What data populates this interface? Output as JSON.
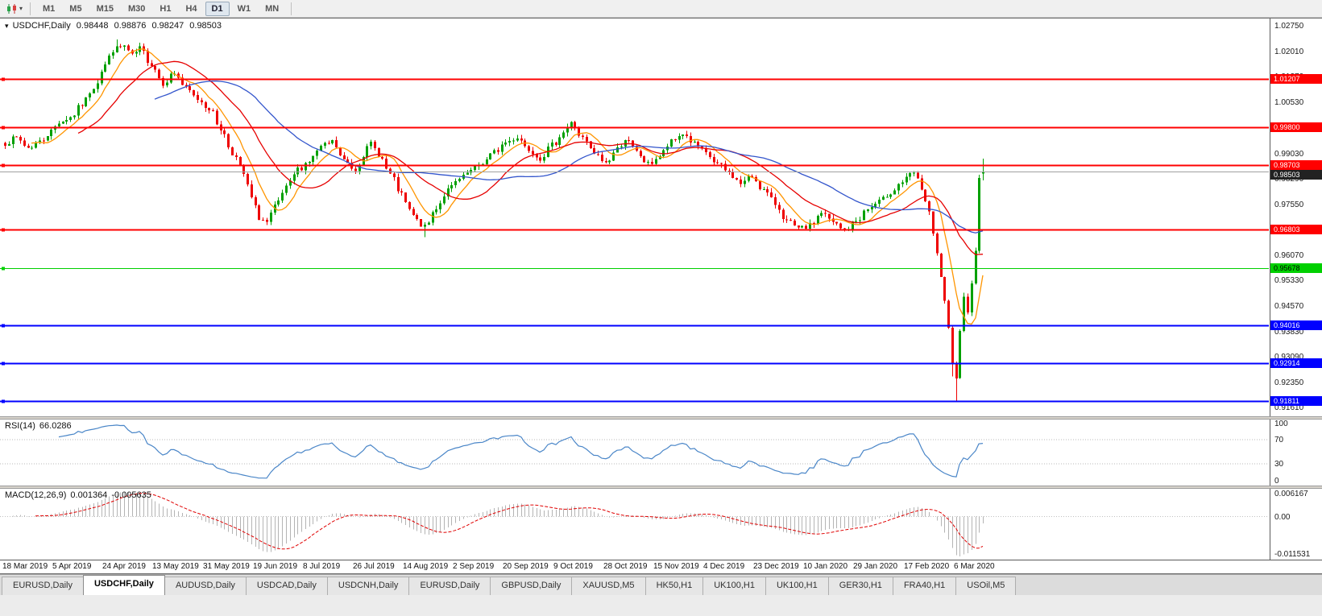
{
  "toolbar": {
    "timeframes": [
      "M1",
      "M5",
      "M15",
      "M30",
      "H1",
      "H4",
      "D1",
      "W1",
      "MN"
    ],
    "active_timeframe": "D1",
    "chart_icon": "candlestick-chart",
    "caret": "▾"
  },
  "chart_header": {
    "symbol_label": "USDCHF,Daily",
    "open": "0.98448",
    "high": "0.98876",
    "low": "0.98247",
    "close": "0.98503"
  },
  "panels": {
    "rsi": {
      "label": "RSI(14)",
      "value": "66.0286",
      "axis": [
        "100",
        "70",
        "30",
        "0"
      ],
      "upper": 70,
      "lower": 30,
      "color": "#4a86c8"
    },
    "macd": {
      "label": "MACD(12,26,9)",
      "value_main": "0.001364",
      "value_signal": "-0.005635",
      "axis_top": "0.006167",
      "axis_zero": "0.00",
      "axis_bottom": "-0.011531",
      "hist_color": "#b4b4b4",
      "signal_color": "#e00000"
    }
  },
  "tabs": [
    "EURUSD,Daily",
    "USDCHF,Daily",
    "AUDUSD,Daily",
    "USDCAD,Daily",
    "USDCNH,Daily",
    "EURUSD,Daily",
    "GBPUSD,Daily",
    "XAUUSD,M5",
    "HK50,H1",
    "UK100,H1",
    "UK100,H1",
    "GER30,H1",
    "FRA40,H1",
    "USOil,M5"
  ],
  "active_tab_index": 1,
  "colors": {
    "bull": "#00a000",
    "bear": "#ee0000",
    "ma_fast": "#ff9500",
    "ma_mid": "#e60000",
    "ma_slow": "#3355cc",
    "current_price_line": "#a0a0a0",
    "current_price_tag_bg": "#222222"
  },
  "chart_data": {
    "type": "candlestick",
    "symbol": "USDCHF",
    "timeframe": "Daily",
    "current_candle": {
      "open": 0.98448,
      "high": 0.98876,
      "low": 0.98247,
      "close": 0.98503
    },
    "current_price": 0.98503,
    "current_price_label": "0.98503",
    "y_top": 1.0297,
    "y_bottom": 0.9136,
    "y_ticks": [
      "1.02750",
      "1.02010",
      "1.01270",
      "1.00530",
      "0.99030",
      "0.98290",
      "0.97550",
      "0.96070",
      "0.95330",
      "0.94570",
      "0.93830",
      "0.93090",
      "0.92350",
      "0.91610"
    ],
    "x_labels": [
      "18 Mar 2019",
      "5 Apr 2019",
      "24 Apr 2019",
      "13 May 2019",
      "31 May 2019",
      "19 Jun 2019",
      "8 Jul 2019",
      "26 Jul 2019",
      "14 Aug 2019",
      "2 Sep 2019",
      "20 Sep 2019",
      "9 Oct 2019",
      "28 Oct 2019",
      "15 Nov 2019",
      "4 Dec 2019",
      "23 Dec 2019",
      "10 Jan 2020",
      "29 Jan 2020",
      "17 Feb 2020",
      "6 Mar 2020"
    ],
    "x_label_step": 13,
    "n_candles": 255,
    "x0": 6,
    "step": 4.78,
    "seed": 7,
    "noise": 0.0009,
    "wick": 0.0012,
    "horizontal_levels": [
      {
        "price": 1.01207,
        "label": "1.01207",
        "color": "#ff0000",
        "width": 2,
        "text": "#ffffff"
      },
      {
        "price": 0.998,
        "label": "0.99800",
        "color": "#ff0000",
        "width": 2,
        "text": "#ffffff"
      },
      {
        "price": 0.98703,
        "label": "0.98703",
        "color": "#ff0000",
        "width": 2,
        "text": "#ffffff"
      },
      {
        "price": 0.96803,
        "label": "0.96803",
        "color": "#ff0000",
        "width": 2,
        "text": "#ffffff"
      },
      {
        "price": 0.95678,
        "label": "0.95678",
        "color": "#00d000",
        "width": 1,
        "text": "#000000"
      },
      {
        "price": 0.94016,
        "label": "0.94016",
        "color": "#0000ff",
        "width": 2,
        "text": "#ffffff"
      },
      {
        "price": 0.92914,
        "label": "0.92914",
        "color": "#0000ff",
        "width": 2,
        "text": "#ffffff"
      },
      {
        "price": 0.91811,
        "label": "0.91811",
        "color": "#0000ff",
        "width": 2,
        "text": "#ffffff"
      }
    ],
    "close_anchors": [
      [
        0,
        0.9935
      ],
      [
        3,
        0.9948
      ],
      [
        6,
        0.992
      ],
      [
        9,
        0.9937
      ],
      [
        12,
        0.9968
      ],
      [
        14,
        0.9996
      ],
      [
        17,
        1.0008
      ],
      [
        20,
        1.0046
      ],
      [
        23,
        1.0098
      ],
      [
        26,
        1.0162
      ],
      [
        28,
        1.0206
      ],
      [
        31,
        1.0216
      ],
      [
        33,
        1.0186
      ],
      [
        35,
        1.0208
      ],
      [
        38,
        1.0164
      ],
      [
        41,
        1.011
      ],
      [
        44,
        1.0138
      ],
      [
        47,
        1.0092
      ],
      [
        50,
        1.0062
      ],
      [
        53,
        1.0036
      ],
      [
        56,
        0.9976
      ],
      [
        59,
        0.9906
      ],
      [
        62,
        0.9842
      ],
      [
        64,
        0.9772
      ],
      [
        66,
        0.9716
      ],
      [
        68,
        0.9701
      ],
      [
        70,
        0.9746
      ],
      [
        73,
        0.9801
      ],
      [
        76,
        0.9856
      ],
      [
        79,
        0.9882
      ],
      [
        82,
        0.9921
      ],
      [
        85,
        0.9936
      ],
      [
        88,
        0.9881
      ],
      [
        91,
        0.9856
      ],
      [
        93,
        0.9901
      ],
      [
        95,
        0.9931
      ],
      [
        97,
        0.9901
      ],
      [
        100,
        0.9841
      ],
      [
        103,
        0.9781
      ],
      [
        105,
        0.9736
      ],
      [
        107,
        0.9706
      ],
      [
        109,
        0.9686
      ],
      [
        112,
        0.9746
      ],
      [
        115,
        0.9796
      ],
      [
        118,
        0.9826
      ],
      [
        121,
        0.9851
      ],
      [
        124,
        0.9876
      ],
      [
        127,
        0.9906
      ],
      [
        130,
        0.9936
      ],
      [
        133,
        0.9951
      ],
      [
        136,
        0.9916
      ],
      [
        139,
        0.9891
      ],
      [
        142,
        0.9926
      ],
      [
        145,
        0.9966
      ],
      [
        147,
        0.9991
      ],
      [
        150,
        0.9946
      ],
      [
        153,
        0.9901
      ],
      [
        156,
        0.9876
      ],
      [
        159,
        0.9916
      ],
      [
        161,
        0.9946
      ],
      [
        164,
        0.9906
      ],
      [
        167,
        0.9871
      ],
      [
        170,
        0.9896
      ],
      [
        173,
        0.9936
      ],
      [
        176,
        0.9961
      ],
      [
        179,
        0.9931
      ],
      [
        182,
        0.9901
      ],
      [
        185,
        0.9871
      ],
      [
        188,
        0.9846
      ],
      [
        191,
        0.9816
      ],
      [
        194,
        0.9836
      ],
      [
        197,
        0.9796
      ],
      [
        200,
        0.9756
      ],
      [
        203,
        0.9706
      ],
      [
        206,
        0.9681
      ],
      [
        209,
        0.9691
      ],
      [
        212,
        0.9731
      ],
      [
        215,
        0.9701
      ],
      [
        218,
        0.9676
      ],
      [
        221,
        0.9706
      ],
      [
        224,
        0.9741
      ],
      [
        227,
        0.9761
      ],
      [
        230,
        0.9791
      ],
      [
        233,
        0.9821
      ],
      [
        236,
        0.9846
      ],
      [
        238,
        0.9801
      ],
      [
        240,
        0.9726
      ],
      [
        241,
        0.9666
      ],
      [
        242,
        0.9606
      ],
      [
        243,
        0.9546
      ],
      [
        244,
        0.9466
      ],
      [
        245,
        0.9386
      ],
      [
        246,
        0.9286
      ],
      [
        247,
        0.9256
      ],
      [
        248,
        0.9391
      ],
      [
        249,
        0.9481
      ],
      [
        250,
        0.9446
      ],
      [
        251,
        0.9531
      ],
      [
        252,
        0.9611
      ],
      [
        253,
        0.9836
      ],
      [
        254,
        0.98503
      ]
    ],
    "overrides": {
      "29": {
        "high": 1.0236
      },
      "68": {
        "low": 0.9694
      },
      "109": {
        "low": 0.9659
      },
      "246": {
        "low": 0.9252
      },
      "247": {
        "low": 0.91811
      },
      "254": {
        "open": 0.98448,
        "high": 0.98876,
        "low": 0.98247,
        "close": 0.98503
      }
    },
    "moving_averages": [
      {
        "period": 8,
        "color": "#ff9500"
      },
      {
        "period": 20,
        "color": "#e60000"
      },
      {
        "period": 40,
        "color": "#3355cc"
      }
    ],
    "rsi_period": 14,
    "macd_params": [
      12,
      26,
      9
    ]
  }
}
